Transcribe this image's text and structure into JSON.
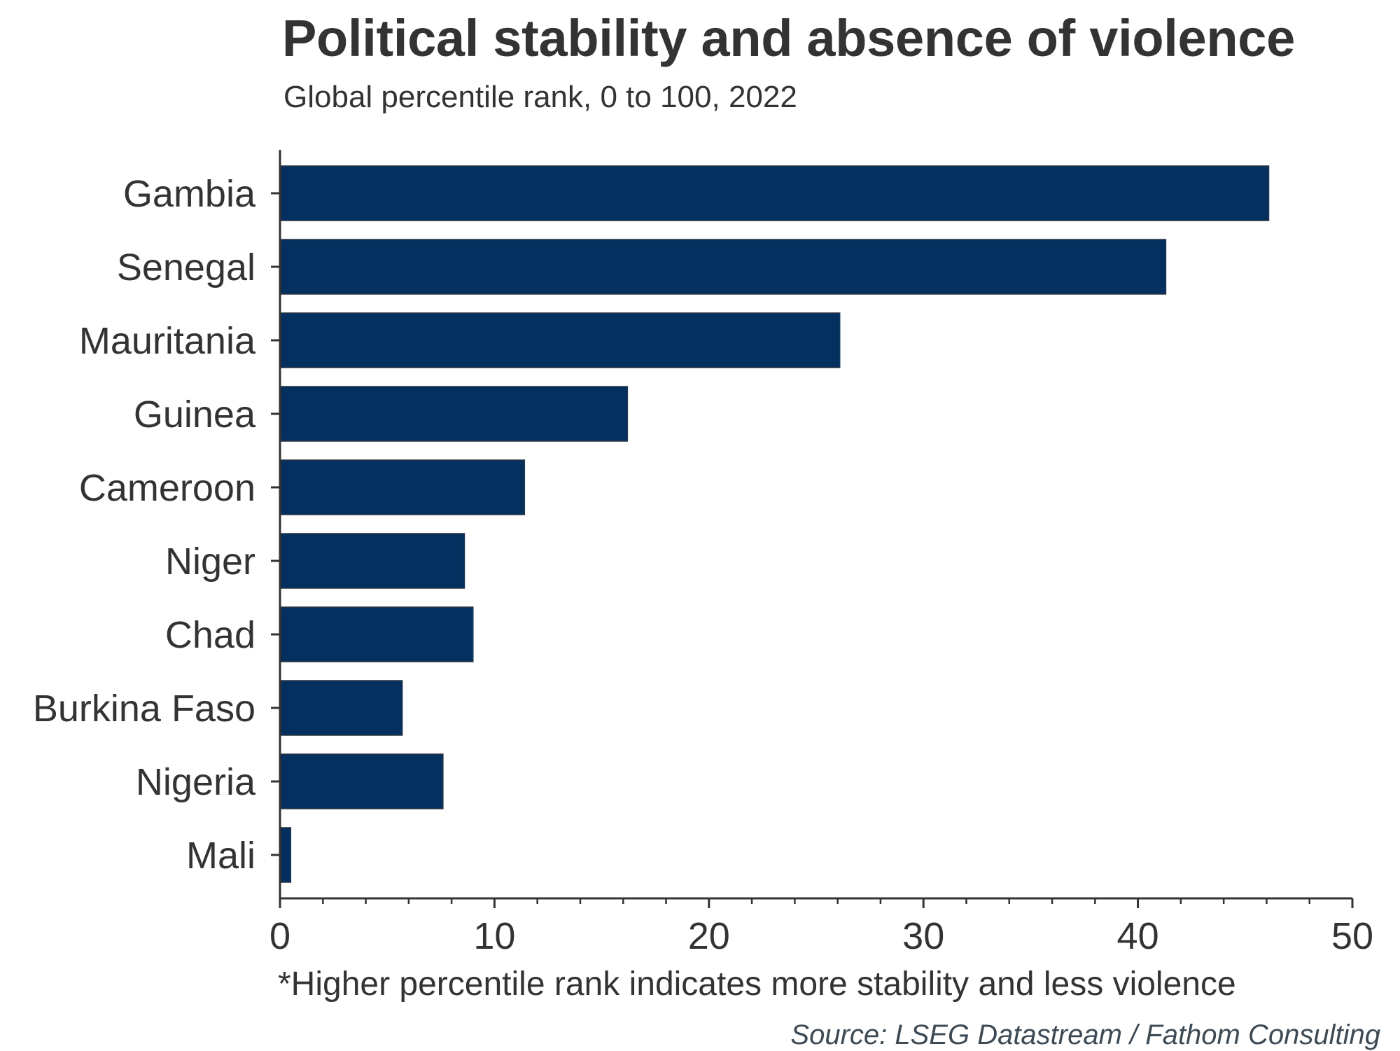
{
  "header": {
    "title": "Political stability and absence of violence",
    "subtitle": "Global percentile rank, 0 to 100, 2022"
  },
  "footer": {
    "footnote": "*Higher percentile rank indicates more stability and less violence",
    "source": "Source: LSEG Datastream / Fathom Consulting"
  },
  "colors": {
    "bar": "#03305f",
    "axis": "#333333",
    "text": "#333333",
    "source_text": "#3b4a55"
  },
  "chart_data": {
    "type": "bar",
    "orientation": "horizontal",
    "title": "Political stability and absence of violence",
    "subtitle": "Global percentile rank, 0 to 100, 2022",
    "categories": [
      "Gambia",
      "Senegal",
      "Mauritania",
      "Guinea",
      "Cameroon",
      "Niger",
      "Chad",
      "Burkina Faso",
      "Nigeria",
      "Mali"
    ],
    "values": [
      46.1,
      41.3,
      26.1,
      16.2,
      11.4,
      8.6,
      9.0,
      5.7,
      7.6,
      0.5
    ],
    "xlabel": "",
    "ylabel": "",
    "xlim": [
      0,
      50
    ],
    "x_ticks": [
      0,
      10,
      20,
      30,
      40,
      50
    ],
    "x_minor_tick_step": 2,
    "grid": false,
    "legend": "none",
    "footnote": "*Higher percentile rank indicates more stability and less violence",
    "source": "Source: LSEG Datastream / Fathom Consulting"
  }
}
